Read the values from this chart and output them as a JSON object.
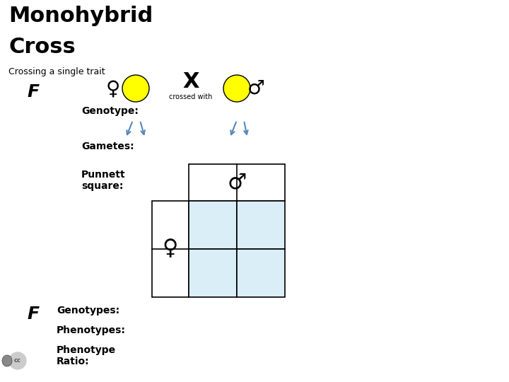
{
  "title_line1": "Monohybrid",
  "title_line2": "Cross",
  "subtitle": "Crossing a single trait",
  "f1_label": "F",
  "f2_label": "F",
  "genotype_label": "Genotype:",
  "gametes_label": "Gametes:",
  "punnett_label": "Punnett\nsquare:",
  "genotypes_label": "Genotypes:",
  "phenotypes_label": "Phenotypes:",
  "phenotype_ratio_label": "Phenotype\nRatio:",
  "background_color": "#ffffff",
  "title_color": "#000000",
  "subtitle_color": "#000000",
  "label_color": "#000000",
  "arrow_color": "#5588bb",
  "punnett_fill_color": "#daeef7",
  "punnett_border_color": "#000000",
  "ellipse_color": "#ffff00",
  "ellipse_border": "#000000",
  "cross_x": "X",
  "crossed_with": "crossed with",
  "female_symbol": "♀",
  "male_symbol": "♂"
}
